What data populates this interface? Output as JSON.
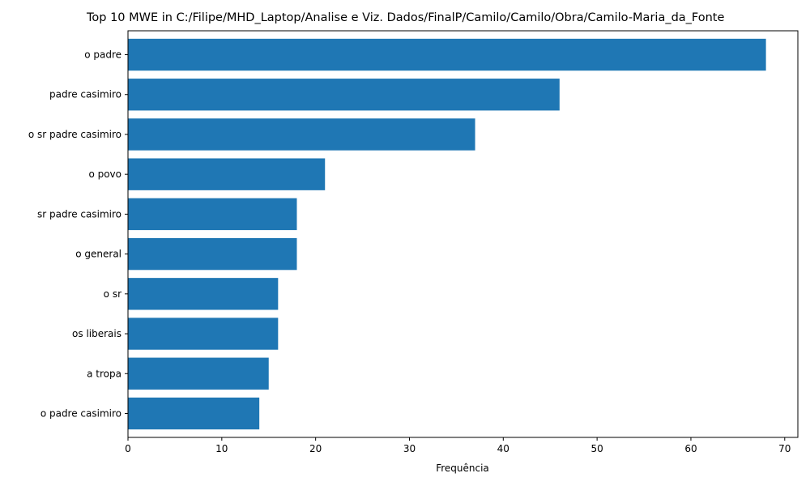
{
  "chart_data": {
    "type": "bar",
    "orientation": "horizontal",
    "title": "Top 10 MWE in C:/Filipe/MHD_Laptop/Analise e Viz. Dados/FinalP/Camilo/Camilo/Obra/Camilo-Maria_da_Fonte",
    "xlabel": "Frequência",
    "ylabel": "",
    "categories": [
      "o padre casimiro",
      "a tropa",
      "os liberais",
      "o sr",
      "o general",
      "sr padre casimiro",
      "o povo",
      "o sr padre casimiro",
      "padre casimiro",
      "o padre"
    ],
    "values": [
      14,
      15,
      16,
      16,
      18,
      18,
      21,
      37,
      46,
      68
    ],
    "xlim": [
      0,
      71.4
    ],
    "xticks": [
      0,
      10,
      20,
      30,
      40,
      50,
      60,
      70
    ],
    "grid": false,
    "bar_color": "#1f77b4"
  }
}
